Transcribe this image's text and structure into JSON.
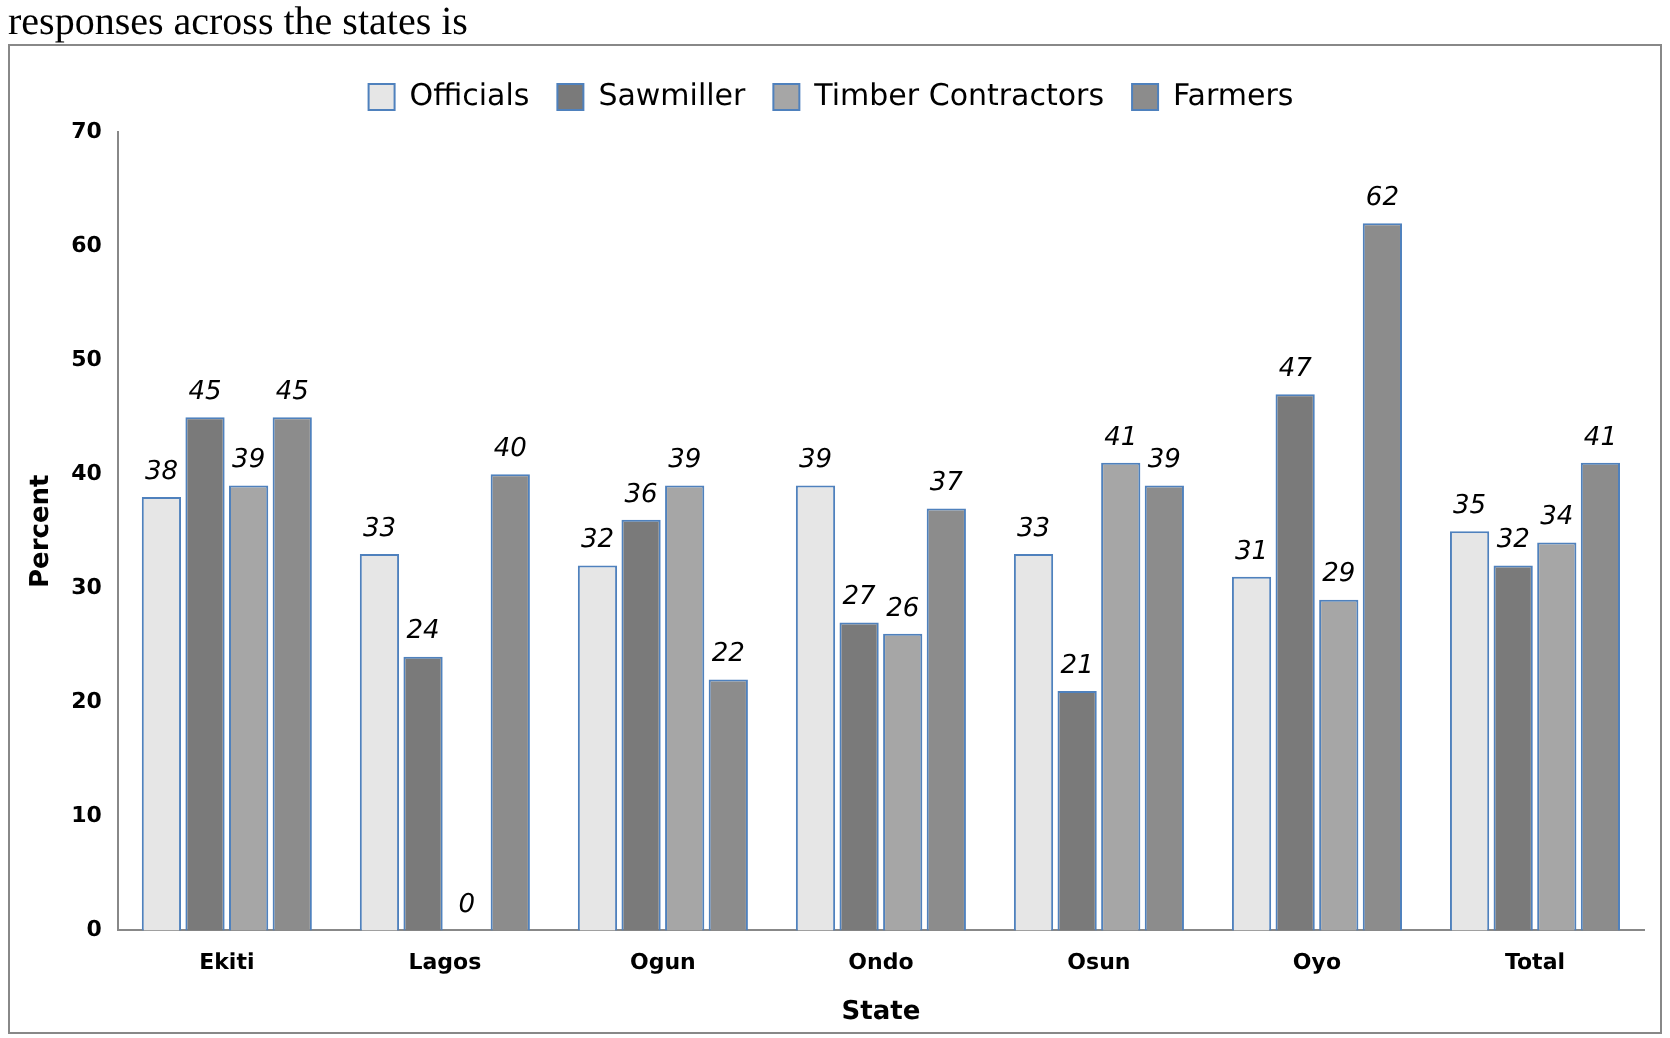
{
  "chart_data": {
    "type": "bar",
    "xlabel": "State",
    "ylabel": "Percent",
    "annotations": [
      "responses across the states is"
    ],
    "categories": [
      "Ekiti",
      "Lagos",
      "Ogun",
      "Ondo",
      "Osun",
      "Oyo",
      "Total"
    ],
    "series": [
      {
        "name": "Officials",
        "color": "#e6e6e6",
        "values": [
          38,
          33,
          32,
          39,
          33,
          31,
          35
        ]
      },
      {
        "name": "Sawmiller",
        "color": "#7a7a7a",
        "values": [
          45,
          24,
          36,
          27,
          21,
          47,
          32
        ]
      },
      {
        "name": "Timber Contractors",
        "color": "#a6a6a6",
        "values": [
          39,
          0,
          39,
          26,
          41,
          29,
          34
        ]
      },
      {
        "name": "Farmers",
        "color": "#8c8c8c",
        "values": [
          45,
          40,
          22,
          37,
          39,
          62,
          41
        ]
      }
    ],
    "ylim": [
      0,
      70
    ],
    "yticks": [
      0,
      10,
      20,
      30,
      40,
      50,
      60,
      70
    ],
    "grid": false,
    "legend": "top",
    "data_labels": true
  }
}
